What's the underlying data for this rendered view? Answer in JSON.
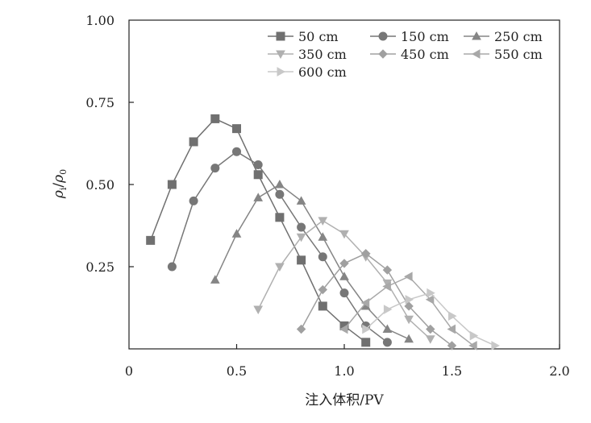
{
  "chart_data": {
    "type": "line",
    "xlabel": "注入体积/PV",
    "ylabel": "ρ",
    "ylabel_sub1": "i",
    "ylabel_slash": "/",
    "ylabel2": "ρ",
    "ylabel_sub2": "0",
    "xlim": [
      0,
      2.0
    ],
    "ylim": [
      0,
      1.0
    ],
    "x_ticks": [
      "0",
      "0.5",
      "1.0",
      "1.5",
      "2.0"
    ],
    "x_tick_values": [
      0,
      0.5,
      1.0,
      1.5,
      2.0
    ],
    "y_ticks": [
      "0.25",
      "0.50",
      "0.75",
      "1.00"
    ],
    "y_tick_values": [
      0.25,
      0.5,
      0.75,
      1.0
    ],
    "grid": false,
    "legend_position": "top-right",
    "series": [
      {
        "name": "50 cm",
        "marker": "square",
        "color": "#707070",
        "x": [
          0.1,
          0.2,
          0.3,
          0.4,
          0.5,
          0.6,
          0.7,
          0.8,
          0.9,
          1.0,
          1.1
        ],
        "y": [
          0.33,
          0.5,
          0.63,
          0.7,
          0.67,
          0.53,
          0.4,
          0.27,
          0.13,
          0.07,
          0.02
        ]
      },
      {
        "name": "150 cm",
        "marker": "circle",
        "color": "#777777",
        "x": [
          0.2,
          0.3,
          0.4,
          0.5,
          0.6,
          0.7,
          0.8,
          0.9,
          1.0,
          1.1,
          1.2
        ],
        "y": [
          0.25,
          0.45,
          0.55,
          0.6,
          0.56,
          0.47,
          0.37,
          0.28,
          0.17,
          0.07,
          0.02
        ]
      },
      {
        "name": "250 cm",
        "marker": "triangle-up",
        "color": "#858585",
        "x": [
          0.4,
          0.5,
          0.6,
          0.7,
          0.8,
          0.9,
          1.0,
          1.1,
          1.2,
          1.3
        ],
        "y": [
          0.21,
          0.35,
          0.46,
          0.5,
          0.45,
          0.34,
          0.22,
          0.13,
          0.06,
          0.03
        ]
      },
      {
        "name": "350 cm",
        "marker": "triangle-down",
        "color": "#b0b0b0",
        "x": [
          0.6,
          0.7,
          0.8,
          0.9,
          1.0,
          1.1,
          1.2,
          1.3,
          1.4
        ],
        "y": [
          0.12,
          0.25,
          0.34,
          0.39,
          0.35,
          0.28,
          0.2,
          0.09,
          0.03
        ]
      },
      {
        "name": "450 cm",
        "marker": "diamond",
        "color": "#a0a0a0",
        "x": [
          0.8,
          0.9,
          1.0,
          1.1,
          1.2,
          1.3,
          1.4,
          1.5
        ],
        "y": [
          0.06,
          0.18,
          0.26,
          0.29,
          0.24,
          0.13,
          0.06,
          0.01
        ]
      },
      {
        "name": "550 cm",
        "marker": "triangle-left",
        "color": "#a8a8a8",
        "x": [
          1.0,
          1.1,
          1.2,
          1.3,
          1.4,
          1.5,
          1.6
        ],
        "y": [
          0.06,
          0.14,
          0.19,
          0.22,
          0.15,
          0.06,
          0.01
        ]
      },
      {
        "name": "600 cm",
        "marker": "triangle-right",
        "color": "#c8c8c8",
        "x": [
          1.1,
          1.2,
          1.3,
          1.4,
          1.5,
          1.6,
          1.7
        ],
        "y": [
          0.06,
          0.12,
          0.15,
          0.17,
          0.1,
          0.04,
          0.01
        ]
      }
    ]
  }
}
